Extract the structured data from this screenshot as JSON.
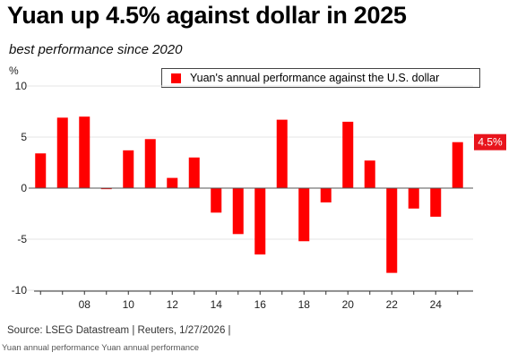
{
  "header": {
    "title": "Yuan up 4.5% against dollar in 2025",
    "subtitle": "best performance since 2020",
    "unit_label": "%"
  },
  "legend": {
    "label": "Yuan's annual performance against the U.S. dollar"
  },
  "callout": {
    "text": "4.5%"
  },
  "footer": {
    "source": "Source: LSEG Datastream | Reuters, 1/27/2026  |",
    "footnote": "Yuan annual performance Yuan annual performance"
  },
  "colors": {
    "bar": "#ff0000",
    "callout_bg": "#e8141c",
    "gridline": "#e6e6e6",
    "axis": "#333333"
  },
  "chart_data": {
    "type": "bar",
    "title": "Yuan up 4.5% against dollar in 2025",
    "subtitle": "best performance since 2020",
    "ylabel": "%",
    "xlabel": "",
    "categories": [
      "2006",
      "2007",
      "2008",
      "2009",
      "2010",
      "2011",
      "2012",
      "2013",
      "2014",
      "2015",
      "2016",
      "2017",
      "2018",
      "2019",
      "2020",
      "2021",
      "2022",
      "2023",
      "2024",
      "2025"
    ],
    "series": [
      {
        "name": "Yuan's annual performance against the U.S. dollar",
        "values": [
          3.4,
          6.9,
          7.0,
          -0.1,
          3.7,
          4.8,
          1.0,
          3.0,
          -2.4,
          -4.5,
          -6.5,
          6.7,
          -5.2,
          -1.4,
          6.5,
          2.7,
          -8.3,
          -2.0,
          -2.8,
          4.5
        ]
      }
    ],
    "ylim": [
      -10,
      10
    ],
    "yticks": [
      10,
      5,
      0,
      -5,
      -10
    ],
    "xtick_labels": [
      "08",
      "10",
      "12",
      "14",
      "16",
      "18",
      "20",
      "22",
      "24"
    ],
    "xtick_categories": [
      "2008",
      "2010",
      "2012",
      "2014",
      "2016",
      "2018",
      "2020",
      "2022",
      "2024"
    ],
    "grid": true,
    "legend_position": "top-right"
  }
}
